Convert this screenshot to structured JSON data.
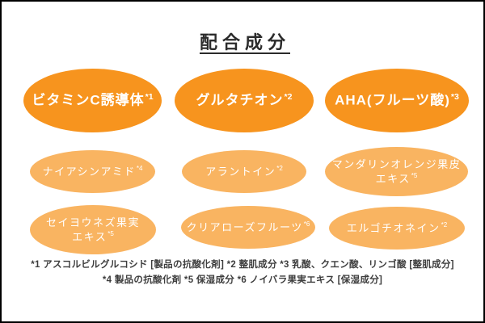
{
  "title": "配合成分",
  "colors": {
    "primary": "#f7941e",
    "secondary": "#f9b461",
    "title_text": "#2b2b2b",
    "footnote_text": "#3d3d3d",
    "bubble_text": "#ffffff",
    "background": "#ffffff",
    "border": "#000000"
  },
  "bubbles": [
    {
      "line1": "ビタミンC誘導体",
      "line2": "",
      "sup": "*1",
      "tier": "primary"
    },
    {
      "line1": "グルタチオン",
      "line2": "",
      "sup": "*2",
      "tier": "primary"
    },
    {
      "line1": "AHA(フルーツ酸)",
      "line2": "",
      "sup": "*3",
      "tier": "primary"
    },
    {
      "line1": "ナイアシンアミド",
      "line2": "",
      "sup": "*4",
      "tier": "secondary"
    },
    {
      "line1": "アラントイン",
      "line2": "",
      "sup": "*2",
      "tier": "secondary"
    },
    {
      "line1": "マンダリンオレンジ果皮",
      "line2": "エキス",
      "sup": "*5",
      "tier": "secondary"
    },
    {
      "line1": "セイヨウネズ果実",
      "line2": "エキス",
      "sup": "*5",
      "tier": "secondary"
    },
    {
      "line1": "クリアローズフルーツ",
      "line2": "",
      "sup": "*6",
      "tier": "secondary"
    },
    {
      "line1": "エルゴチオネイン",
      "line2": "",
      "sup": "*2",
      "tier": "secondary"
    }
  ],
  "footnotes": {
    "line1": "*1 アスコルビルグルコシド [製品の抗酸化剤] *2 整肌成分 *3 乳酸、クエン酸、リンゴ酸 [整肌成分]",
    "line2": "*4 製品の抗酸化剤 *5 保湿成分 *6 ノイバラ果実エキス [保湿成分]"
  }
}
